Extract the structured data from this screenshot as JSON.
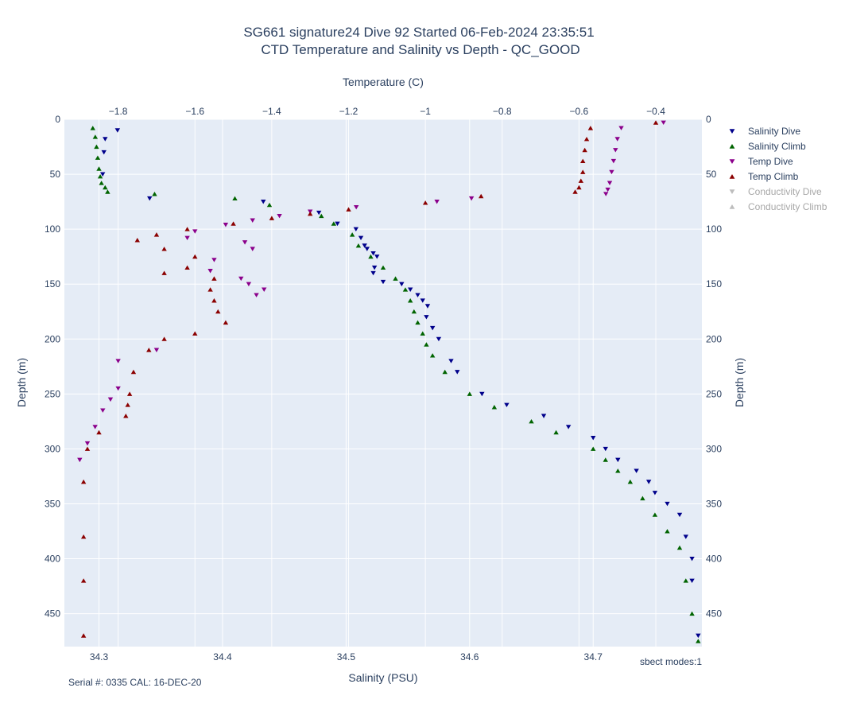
{
  "chart_data": {
    "type": "scatter",
    "title_line1": "SG661 signature24 Dive 92 Started 06-Feb-2024 23:35:51",
    "title_line2": "CTD Temperature and Salinity vs Depth - QC_GOOD",
    "xlabel_bottom": "Salinity (PSU)",
    "xlabel_top": "Temperature (C)",
    "ylabel_left": "Depth (m)",
    "ylabel_right": "Depth (m)",
    "footer_left": "Serial #: 0335  CAL: 16-DEC-20",
    "footer_right": "sbect modes:1",
    "salinity_range": [
      34.272,
      34.788
    ],
    "temperature_range": [
      -1.94,
      -0.28
    ],
    "depth_range": [
      0,
      480
    ],
    "salinity_ticks": [
      "34.3",
      "34.4",
      "34.5",
      "34.6",
      "34.7"
    ],
    "temperature_ticks": [
      "−1.8",
      "−1.6",
      "−1.4",
      "−1.2",
      "−1",
      "−0.8",
      "−0.6",
      "−0.4"
    ],
    "depth_ticks": [
      "0",
      "50",
      "100",
      "150",
      "200",
      "250",
      "300",
      "350",
      "400",
      "450"
    ],
    "legend_position": "right",
    "grid": true,
    "colors": {
      "salinity_dive": "#00008b",
      "salinity_climb": "#006400",
      "temp_dive": "#8b008b",
      "temp_climb": "#8b0000",
      "conductivity": "#bdbdbd",
      "plot_bg": "#e5ecf6",
      "grid": "#ffffff",
      "text": "#2a3f5f"
    },
    "series": [
      {
        "name": "Salinity Dive",
        "axis": "salinity",
        "marker": "triangle-down",
        "visible": true,
        "x": [
          34.315,
          34.305,
          34.304,
          34.303,
          34.341,
          34.433,
          34.478,
          34.493,
          34.508,
          34.512,
          34.515,
          34.517,
          34.522,
          34.525,
          34.523,
          34.522,
          34.53,
          34.545,
          34.552,
          34.558,
          34.562,
          34.566,
          34.565,
          34.57,
          34.575,
          34.585,
          34.59,
          34.61,
          34.63,
          34.66,
          34.68,
          34.7,
          34.71,
          34.72,
          34.735,
          34.745,
          34.75,
          34.76,
          34.77,
          34.775,
          34.78,
          34.78,
          34.785
        ],
        "y": [
          10,
          18,
          30,
          50,
          72,
          75,
          85,
          95,
          100,
          108,
          115,
          118,
          122,
          125,
          135,
          140,
          148,
          150,
          155,
          160,
          165,
          170,
          180,
          190,
          200,
          220,
          230,
          250,
          260,
          270,
          280,
          290,
          300,
          310,
          320,
          330,
          340,
          350,
          360,
          380,
          400,
          420,
          470
        ]
      },
      {
        "name": "Salinity Climb",
        "axis": "salinity",
        "marker": "triangle-up",
        "visible": true,
        "x": [
          34.295,
          34.297,
          34.298,
          34.299,
          34.3,
          34.301,
          34.302,
          34.305,
          34.307,
          34.345,
          34.41,
          34.438,
          34.48,
          34.49,
          34.505,
          34.51,
          34.52,
          34.53,
          34.54,
          34.548,
          34.552,
          34.555,
          34.558,
          34.562,
          34.565,
          34.57,
          34.58,
          34.6,
          34.62,
          34.65,
          34.67,
          34.7,
          34.71,
          34.72,
          34.73,
          34.74,
          34.75,
          34.76,
          34.77,
          34.775,
          34.78,
          34.785
        ],
        "y": [
          8,
          16,
          25,
          35,
          45,
          52,
          58,
          62,
          66,
          68,
          72,
          78,
          88,
          95,
          105,
          115,
          125,
          135,
          145,
          155,
          165,
          175,
          185,
          195,
          205,
          215,
          230,
          250,
          262,
          275,
          285,
          300,
          310,
          320,
          330,
          345,
          360,
          375,
          390,
          420,
          450,
          475
        ]
      },
      {
        "name": "Temp Dive",
        "axis": "temperature",
        "marker": "triangle-down",
        "visible": true,
        "x": [
          -0.38,
          -0.49,
          -0.5,
          -0.505,
          -0.51,
          -0.515,
          -0.52,
          -0.525,
          -0.53,
          -0.88,
          -0.97,
          -1.18,
          -1.3,
          -1.38,
          -1.45,
          -1.52,
          -1.6,
          -1.62,
          -1.47,
          -1.45,
          -1.55,
          -1.56,
          -1.48,
          -1.46,
          -1.42,
          -1.44,
          -1.7,
          -1.8,
          -1.8,
          -1.82,
          -1.84,
          -1.86,
          -1.88,
          -1.9
        ],
        "y": [
          3,
          8,
          18,
          28,
          38,
          48,
          58,
          64,
          68,
          72,
          75,
          80,
          84,
          88,
          92,
          96,
          102,
          108,
          112,
          118,
          128,
          138,
          145,
          150,
          155,
          160,
          210,
          220,
          245,
          255,
          265,
          280,
          295,
          310
        ]
      },
      {
        "name": "Temp Climb",
        "axis": "temperature",
        "marker": "triangle-up",
        "visible": true,
        "x": [
          -0.4,
          -0.57,
          -0.58,
          -0.585,
          -0.59,
          -0.59,
          -0.595,
          -0.6,
          -0.61,
          -0.855,
          -1.0,
          -1.2,
          -1.3,
          -1.4,
          -1.5,
          -1.62,
          -1.7,
          -1.75,
          -1.68,
          -1.6,
          -1.62,
          -1.68,
          -1.55,
          -1.56,
          -1.55,
          -1.54,
          -1.52,
          -1.6,
          -1.68,
          -1.72,
          -1.76,
          -1.77,
          -1.775,
          -1.78,
          -1.85,
          -1.88,
          -1.89,
          -1.89,
          -1.89,
          -1.89
        ],
        "y": [
          3,
          8,
          18,
          28,
          38,
          48,
          56,
          62,
          66,
          70,
          76,
          82,
          86,
          90,
          95,
          100,
          105,
          110,
          118,
          125,
          135,
          140,
          145,
          155,
          165,
          175,
          185,
          195,
          200,
          210,
          230,
          250,
          260,
          270,
          285,
          300,
          330,
          380,
          420,
          470
        ]
      },
      {
        "name": "Conductivity Dive",
        "axis": "none",
        "marker": "triangle-down",
        "visible": false,
        "x": [],
        "y": []
      },
      {
        "name": "Conductivity Climb",
        "axis": "none",
        "marker": "triangle-up",
        "visible": false,
        "x": [],
        "y": []
      }
    ]
  }
}
